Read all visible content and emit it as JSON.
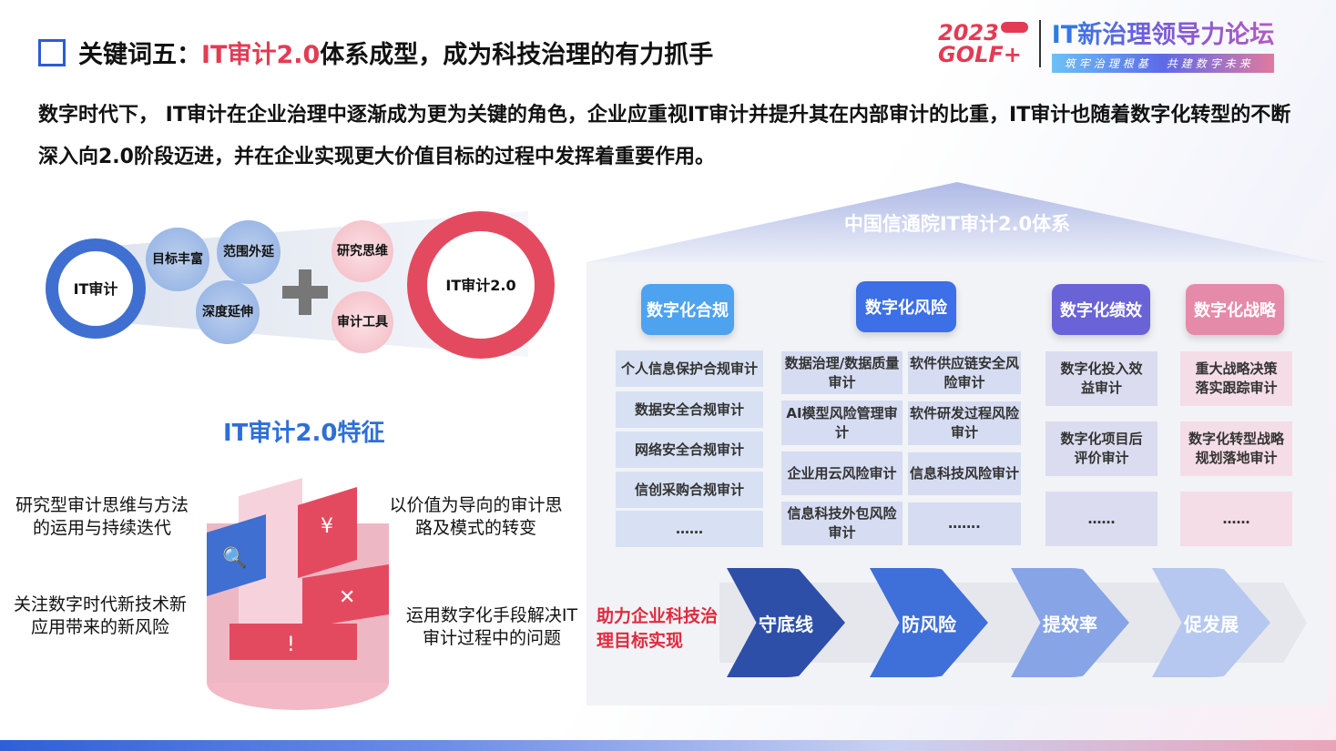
{
  "title": {
    "prefix": "关键词五：",
    "highlight": "IT审计2.0",
    "suffix": "体系成型，成为科技治理的有力抓手"
  },
  "logo": {
    "year": "2023",
    "brand": "GOLF+",
    "name": "IT新治理领导力论坛",
    "slogan": "筑牢治理根基　共建数字未来"
  },
  "intro": "数字时代下， IT审计在企业治理中逐渐成为更为关键的角色，企业应重视IT审计并提升其在内部审计的比重，IT审计也随着数字化转型的不断深入向2.0阶段迈进，并在企业实现更大价值目标的过程中发挥着重要作用。",
  "evolution": {
    "from": "IT审计",
    "blue_bubbles": [
      "目标丰富",
      "范围外延",
      "深度延伸"
    ],
    "pink_bubbles": [
      "研究思维",
      "审计工具"
    ],
    "to": "IT审计2.0"
  },
  "features": {
    "title": "IT审计2.0特征",
    "items": [
      "研究型审计思维与方法的运用与持续迭代",
      "以价值为导向的审计思路及模式的转变",
      "关注数字时代新技术新应用带来的新风险",
      "运用数字化手段解决IT审计过程中的问题"
    ]
  },
  "system": {
    "title": "中国信通院IT审计2.0体系",
    "colors": {
      "compliance": "#4da3f0",
      "risk": "#3d6fe6",
      "performance": "#6a63d8",
      "strategy": "#e58aa8"
    },
    "columns": [
      {
        "header": "数字化合规",
        "items": [
          "个人信息保护合规审计",
          "数据安全合规审计",
          "网络安全合规审计",
          "信创采购合规审计",
          "……"
        ]
      },
      {
        "header": "数字化风险",
        "items": [
          "数据治理/数据质量审计",
          "软件供应链安全风险审计",
          "AI模型风险管理审计",
          "软件研发过程风险审计",
          "企业用云风险审计",
          "信息科技风险审计",
          "信息科技外包风险审计",
          "……."
        ]
      },
      {
        "header": "数字化绩效",
        "items": [
          "数字化投入效益审计",
          "数字化项目后评价审计",
          "……"
        ]
      },
      {
        "header": "数字化战略",
        "items": [
          "重大战略决策落实跟踪审计",
          "数字化转型战略规划落地审计",
          "……"
        ]
      }
    ],
    "goal": "助力企业科技治理目标实现",
    "steps": [
      "守底线",
      "防风险",
      "提效率",
      "促发展"
    ]
  }
}
